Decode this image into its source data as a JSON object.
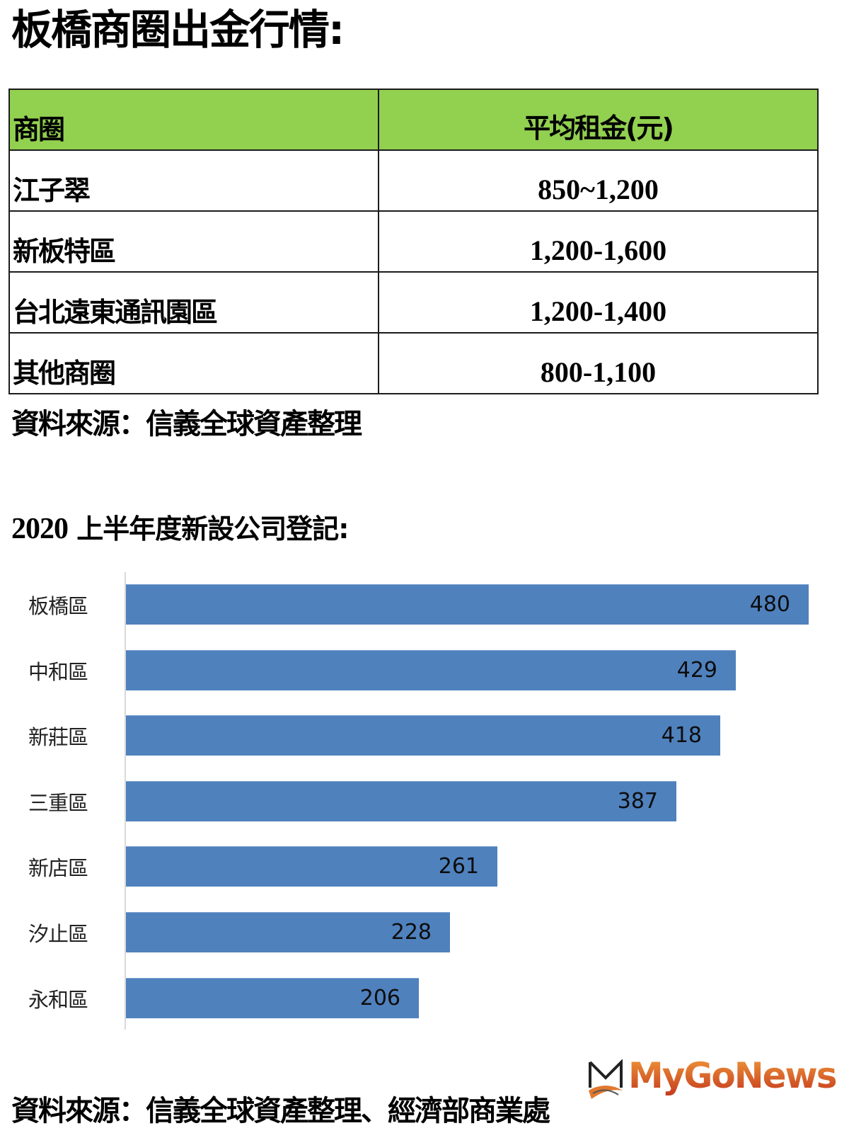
{
  "title": "板橋商圈出金行情:",
  "rent_table": {
    "headers": [
      "商圈",
      "平均租金(元)"
    ],
    "header_bg": "#92d050",
    "rows": [
      {
        "area": "江子翠",
        "rent": "850~1,200"
      },
      {
        "area": "新板特區",
        "rent": "1,200-1,600"
      },
      {
        "area": "台北遠東通訊園區",
        "rent": "1,200-1,400"
      },
      {
        "area": "其他商圈",
        "rent": "800-1,100"
      }
    ]
  },
  "source_1": "資料來源：信義全球資產整理",
  "subtitle": {
    "year": "2020",
    "text": "上半年度新設公司登記:"
  },
  "chart_data": {
    "type": "bar",
    "orientation": "horizontal",
    "title": "2020 上半年度新設公司登記",
    "categories": [
      "板橋區",
      "中和區",
      "新莊區",
      "三重區",
      "新店區",
      "汐止區",
      "永和區"
    ],
    "values": [
      480,
      429,
      418,
      387,
      261,
      228,
      206
    ],
    "value_labels": [
      "480",
      "429",
      "418",
      "387",
      "261",
      "228",
      "206"
    ],
    "xlabel": "",
    "ylabel": "",
    "xlim": [
      0,
      480
    ],
    "grid": false,
    "legend": null,
    "bar_color": "#4f81bd"
  },
  "source_2": "資料來源：信義全球資產整理、經濟部商業處",
  "watermark": {
    "text": "MyGoNews",
    "color": "#d0562a"
  }
}
